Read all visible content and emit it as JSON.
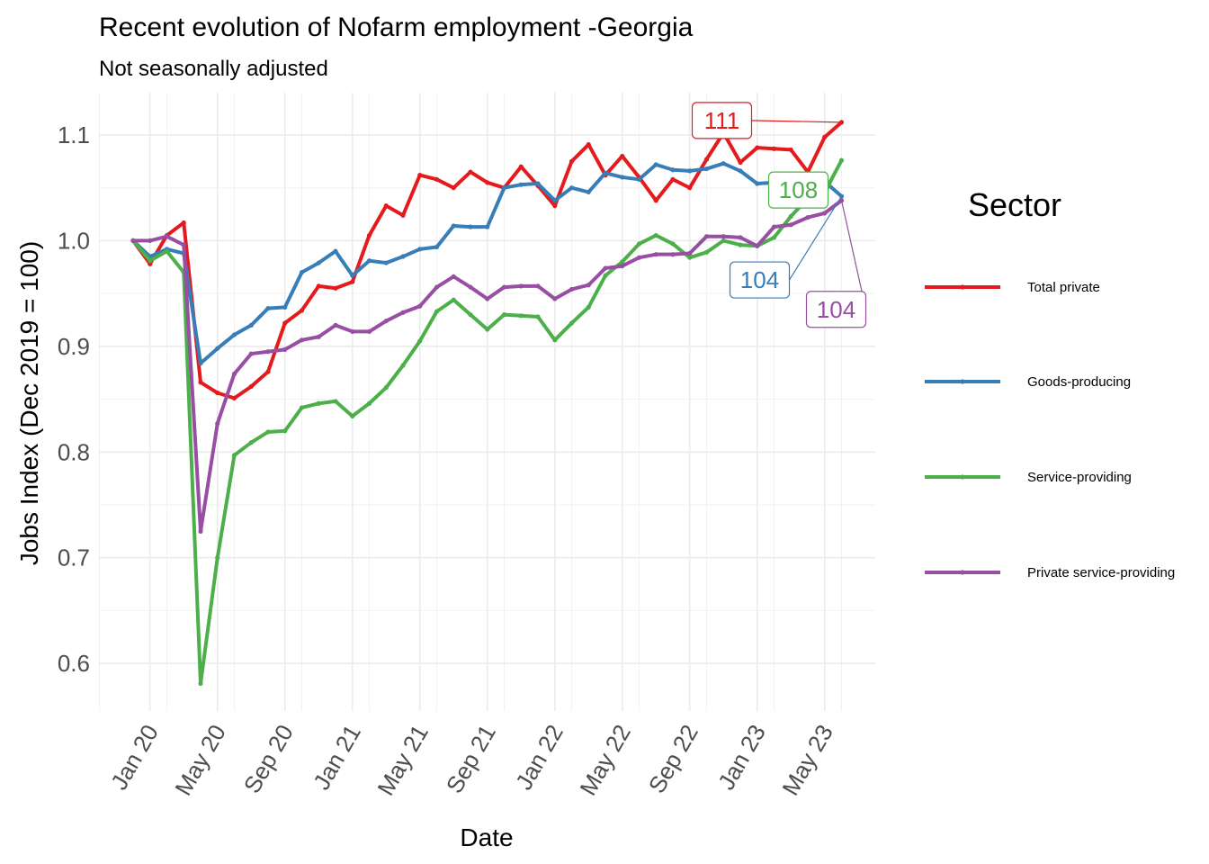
{
  "chart_data": {
    "type": "line",
    "title": "Recent evolution of Nofarm employment -Georgia",
    "subtitle": "Not seasonally adjusted",
    "xlabel": "Date",
    "ylabel": "Jobs Index (Dec 2019 = 100)",
    "ylim": [
      0.555,
      1.14
    ],
    "yticks": [
      0.6,
      0.7,
      0.8,
      0.9,
      1.0,
      1.1
    ],
    "ytick_labels": [
      "0.6",
      "0.7",
      "0.8",
      "0.9",
      "1.0",
      "1.1"
    ],
    "xticks": [
      "2020-01",
      "2020-05",
      "2020-09",
      "2021-01",
      "2021-05",
      "2021-09",
      "2022-01",
      "2022-05",
      "2022-09",
      "2023-01",
      "2023-05"
    ],
    "xtick_labels": [
      "Jan 20",
      "May 20",
      "Sep 20",
      "Jan 21",
      "May 21",
      "Sep 21",
      "Jan 22",
      "May 22",
      "Sep 22",
      "Jan 23",
      "May 23"
    ],
    "x": [
      "2019-12",
      "2020-01",
      "2020-02",
      "2020-03",
      "2020-04",
      "2020-05",
      "2020-06",
      "2020-07",
      "2020-08",
      "2020-09",
      "2020-10",
      "2020-11",
      "2020-12",
      "2021-01",
      "2021-02",
      "2021-03",
      "2021-04",
      "2021-05",
      "2021-06",
      "2021-07",
      "2021-08",
      "2021-09",
      "2021-10",
      "2021-11",
      "2021-12",
      "2022-01",
      "2022-02",
      "2022-03",
      "2022-04",
      "2022-05",
      "2022-06",
      "2022-07",
      "2022-08",
      "2022-09",
      "2022-10",
      "2022-11",
      "2022-12",
      "2023-01",
      "2023-02",
      "2023-03",
      "2023-04",
      "2023-05",
      "2023-06"
    ],
    "grid": true,
    "legend_title": "Sector",
    "legend_position": "right",
    "series": [
      {
        "name": "Total private",
        "color": "#E41A1C",
        "end_label": "111",
        "values": [
          1.0,
          0.978,
          1.005,
          1.017,
          0.866,
          0.856,
          0.851,
          0.862,
          0.876,
          0.922,
          0.934,
          0.957,
          0.955,
          0.961,
          1.005,
          1.033,
          1.024,
          1.062,
          1.058,
          1.05,
          1.065,
          1.055,
          1.05,
          1.07,
          1.052,
          1.033,
          1.075,
          1.091,
          1.062,
          1.08,
          1.06,
          1.038,
          1.058,
          1.05,
          1.077,
          1.102,
          1.074,
          1.088,
          1.087,
          1.086,
          1.065,
          1.098,
          1.112
        ]
      },
      {
        "name": "Goods-producing",
        "color": "#377EB8",
        "end_label": "104",
        "values": [
          1.0,
          0.985,
          0.992,
          0.988,
          0.884,
          0.898,
          0.911,
          0.92,
          0.936,
          0.937,
          0.97,
          0.979,
          0.99,
          0.967,
          0.981,
          0.979,
          0.985,
          0.992,
          0.994,
          1.014,
          1.013,
          1.013,
          1.05,
          1.053,
          1.054,
          1.038,
          1.05,
          1.046,
          1.064,
          1.06,
          1.058,
          1.072,
          1.067,
          1.066,
          1.068,
          1.073,
          1.066,
          1.054,
          1.055,
          1.051,
          1.058,
          1.056,
          1.042
        ]
      },
      {
        "name": "Service-providing",
        "color": "#4DAF4A",
        "end_label": "108",
        "values": [
          1.0,
          0.981,
          0.99,
          0.97,
          0.581,
          0.7,
          0.797,
          0.809,
          0.819,
          0.82,
          0.842,
          0.846,
          0.848,
          0.834,
          0.846,
          0.861,
          0.882,
          0.905,
          0.933,
          0.944,
          0.93,
          0.916,
          0.93,
          0.929,
          0.928,
          0.906,
          0.922,
          0.937,
          0.967,
          0.98,
          0.997,
          1.005,
          0.997,
          0.984,
          0.989,
          1.0,
          0.996,
          0.995,
          1.003,
          1.023,
          1.04,
          1.046,
          1.076
        ]
      },
      {
        "name": "Private service-providing",
        "color": "#984EA3",
        "end_label": "104",
        "values": [
          1.0,
          1.0,
          1.004,
          0.996,
          0.725,
          0.827,
          0.874,
          0.893,
          0.895,
          0.897,
          0.906,
          0.909,
          0.92,
          0.914,
          0.914,
          0.924,
          0.932,
          0.938,
          0.956,
          0.966,
          0.956,
          0.945,
          0.956,
          0.957,
          0.957,
          0.945,
          0.954,
          0.958,
          0.974,
          0.976,
          0.984,
          0.987,
          0.987,
          0.988,
          1.004,
          1.004,
          1.003,
          0.995,
          1.013,
          1.015,
          1.022,
          1.026,
          1.038
        ]
      }
    ]
  }
}
